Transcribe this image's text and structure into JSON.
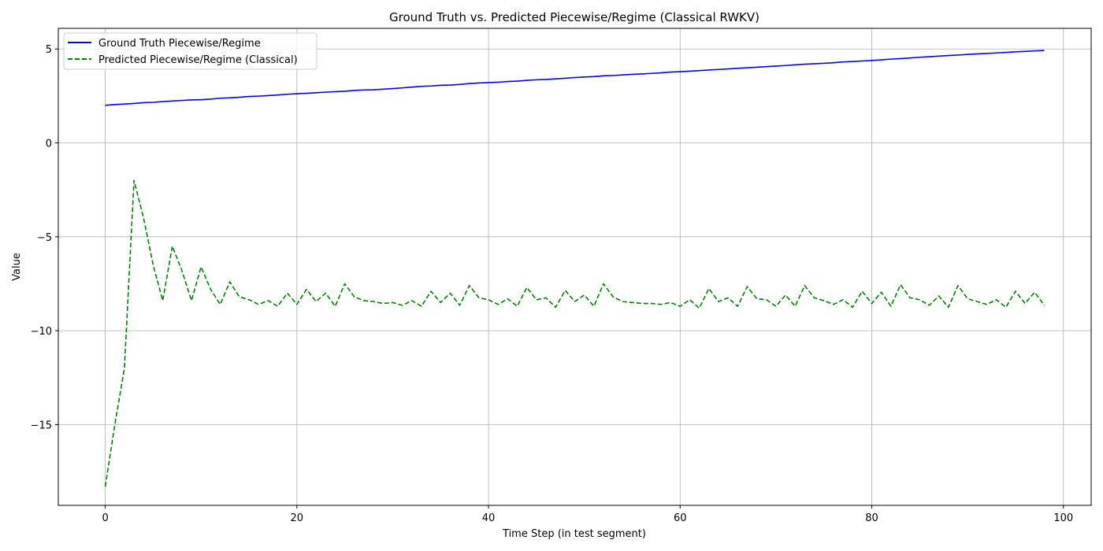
{
  "chart_data": {
    "type": "line",
    "title": "Ground Truth vs. Predicted Piecewise/Regime (Classical RWKV)",
    "xlabel": "Time Step (in test segment)",
    "ylabel": "Value",
    "xlim": [
      -4.9,
      102.9
    ],
    "ylim": [
      -19.3,
      6.1
    ],
    "xticks": [
      0,
      20,
      40,
      60,
      80,
      100
    ],
    "yticks": [
      5,
      0,
      -5,
      -10,
      -15
    ],
    "xtick_labels": [
      "0",
      "20",
      "40",
      "60",
      "80",
      "100"
    ],
    "ytick_labels": [
      "5",
      "0",
      "−5",
      "−10",
      "−15"
    ],
    "grid": true,
    "legend_position": "upper-left",
    "series": [
      {
        "name": "Ground Truth Piecewise/Regime",
        "color": "#0000ff",
        "style": "solid",
        "x": [
          0,
          1,
          2,
          3,
          4,
          5,
          6,
          7,
          8,
          9,
          10,
          11,
          12,
          13,
          14,
          15,
          16,
          17,
          18,
          19,
          20,
          21,
          22,
          23,
          24,
          25,
          26,
          27,
          28,
          29,
          30,
          31,
          32,
          33,
          34,
          35,
          36,
          37,
          38,
          39,
          40,
          41,
          42,
          43,
          44,
          45,
          46,
          47,
          48,
          49,
          50,
          51,
          52,
          53,
          54,
          55,
          56,
          57,
          58,
          59,
          60,
          61,
          62,
          63,
          64,
          65,
          66,
          67,
          68,
          69,
          70,
          71,
          72,
          73,
          74,
          75,
          76,
          77,
          78,
          79,
          80,
          81,
          82,
          83,
          84,
          85,
          86,
          87,
          88,
          89,
          90,
          91,
          92,
          93,
          94,
          95,
          96,
          97,
          98
        ],
        "y": [
          2.0,
          2.04,
          2.07,
          2.1,
          2.14,
          2.16,
          2.2,
          2.23,
          2.26,
          2.29,
          2.3,
          2.33,
          2.38,
          2.4,
          2.43,
          2.47,
          2.49,
          2.52,
          2.55,
          2.59,
          2.62,
          2.64,
          2.67,
          2.7,
          2.73,
          2.75,
          2.79,
          2.82,
          2.83,
          2.86,
          2.89,
          2.93,
          2.97,
          3.01,
          3.03,
          3.07,
          3.08,
          3.11,
          3.16,
          3.19,
          3.21,
          3.23,
          3.27,
          3.29,
          3.33,
          3.36,
          3.38,
          3.41,
          3.44,
          3.48,
          3.51,
          3.53,
          3.57,
          3.59,
          3.62,
          3.65,
          3.67,
          3.7,
          3.73,
          3.77,
          3.79,
          3.82,
          3.85,
          3.88,
          3.91,
          3.94,
          3.97,
          4.0,
          4.03,
          4.06,
          4.09,
          4.12,
          4.16,
          4.19,
          4.21,
          4.24,
          4.27,
          4.31,
          4.33,
          4.36,
          4.39,
          4.42,
          4.46,
          4.49,
          4.52,
          4.56,
          4.59,
          4.62,
          4.65,
          4.68,
          4.71,
          4.74,
          4.76,
          4.79,
          4.82,
          4.85,
          4.87,
          4.9,
          4.92
        ]
      },
      {
        "name": "Predicted Piecewise/Regime (Classical)",
        "color": "#008000",
        "style": "dashed",
        "x": [
          0,
          1,
          2,
          3,
          4,
          5,
          6,
          7,
          8,
          9,
          10,
          11,
          12,
          13,
          14,
          15,
          16,
          17,
          18,
          19,
          20,
          21,
          22,
          23,
          24,
          25,
          26,
          27,
          28,
          29,
          30,
          31,
          32,
          33,
          34,
          35,
          36,
          37,
          38,
          39,
          40,
          41,
          42,
          43,
          44,
          45,
          46,
          47,
          48,
          49,
          50,
          51,
          52,
          53,
          54,
          55,
          56,
          57,
          58,
          59,
          60,
          61,
          62,
          63,
          64,
          65,
          66,
          67,
          68,
          69,
          70,
          71,
          72,
          73,
          74,
          75,
          76,
          77,
          78,
          79,
          80,
          81,
          82,
          83,
          84,
          85,
          86,
          87,
          88,
          89,
          90,
          91,
          92,
          93,
          94,
          95,
          96,
          97,
          98
        ],
        "y": [
          -18.3,
          -15.0,
          -12.0,
          -2.0,
          -4.0,
          -6.5,
          -8.4,
          -5.5,
          -6.8,
          -8.4,
          -6.6,
          -7.8,
          -8.6,
          -7.4,
          -8.2,
          -8.35,
          -8.6,
          -8.4,
          -8.7,
          -8.0,
          -8.6,
          -7.8,
          -8.45,
          -8.0,
          -8.7,
          -7.5,
          -8.2,
          -8.4,
          -8.45,
          -8.55,
          -8.5,
          -8.65,
          -8.4,
          -8.7,
          -7.9,
          -8.5,
          -8.0,
          -8.65,
          -7.6,
          -8.25,
          -8.35,
          -8.6,
          -8.3,
          -8.7,
          -7.7,
          -8.35,
          -8.25,
          -8.75,
          -7.85,
          -8.45,
          -8.1,
          -8.7,
          -7.5,
          -8.2,
          -8.45,
          -8.5,
          -8.55,
          -8.55,
          -8.6,
          -8.5,
          -8.7,
          -8.35,
          -8.8,
          -7.75,
          -8.45,
          -8.25,
          -8.7,
          -7.65,
          -8.3,
          -8.35,
          -8.7,
          -8.1,
          -8.7,
          -7.6,
          -8.25,
          -8.4,
          -8.6,
          -8.35,
          -8.75,
          -7.9,
          -8.55,
          -7.95,
          -8.7,
          -7.55,
          -8.25,
          -8.35,
          -8.65,
          -8.15,
          -8.75,
          -7.6,
          -8.3,
          -8.45,
          -8.6,
          -8.35,
          -8.75,
          -7.9,
          -8.55,
          -7.95,
          -8.65
        ]
      }
    ]
  }
}
